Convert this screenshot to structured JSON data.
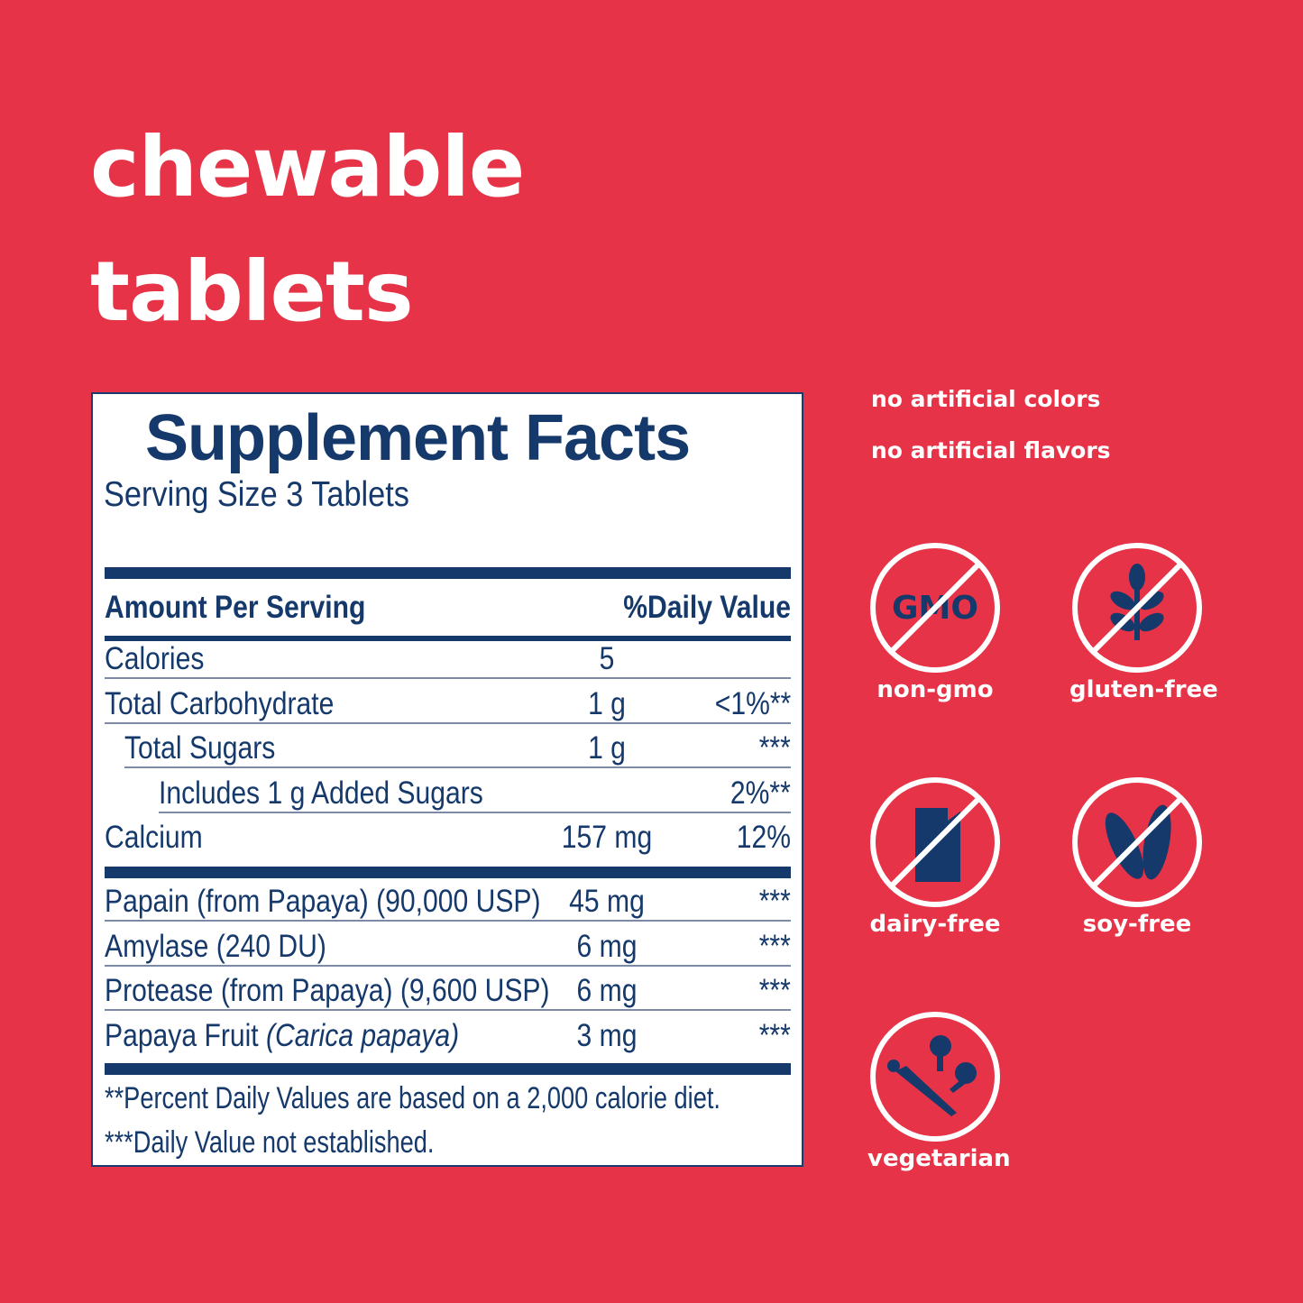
{
  "headline": {
    "line1": "chewable",
    "line2": "tablets"
  },
  "facts": {
    "title": "Supplement Facts",
    "serving_size": "Serving Size 3 Tablets",
    "header_amount": "Amount Per Serving",
    "header_dv": "%Daily Value",
    "rows": [
      {
        "name": "Calories",
        "amount": "5",
        "dv": ""
      },
      {
        "name": "Total Carbohydrate",
        "amount": "1 g",
        "dv": "<1%**"
      },
      {
        "name": "Total Sugars",
        "amount": "1 g",
        "dv": "***"
      },
      {
        "name": "Includes 1 g Added Sugars",
        "amount": "",
        "dv": "2%**"
      },
      {
        "name": "Calcium",
        "amount": "157 mg",
        "dv": "12%"
      }
    ],
    "rows2": [
      {
        "name": "Papain (from Papaya) (90,000 USP)",
        "amount": "45 mg",
        "dv": "***"
      },
      {
        "name": "Amylase (240 DU)",
        "amount": "6 mg",
        "dv": "***"
      },
      {
        "name": "Protease (from Papaya) (9,600 USP)",
        "amount": "6 mg",
        "dv": "***"
      },
      {
        "name": "Papaya Fruit",
        "name_italic": "(Carica papaya)",
        "amount": "3 mg",
        "dv": "***"
      }
    ],
    "footnote1": "**Percent Daily Values are based on a 2,000 calorie diet.",
    "footnote2": "***Daily Value not established."
  },
  "claims": [
    "no artificial colors",
    "no artificial flavors"
  ],
  "badges": [
    {
      "icon": "no-gmo-icon",
      "label": "non-gmo",
      "text": "GMO"
    },
    {
      "icon": "no-wheat-icon",
      "label": "gluten-free"
    },
    {
      "icon": "no-milk-carton-icon",
      "label": "dairy-free"
    },
    {
      "icon": "no-soybean-icon",
      "label": "soy-free"
    },
    {
      "icon": "vegetables-icon",
      "label": "vegetarian"
    }
  ],
  "colors": {
    "background": "#e63347",
    "navy": "#15396b",
    "white": "#ffffff"
  }
}
